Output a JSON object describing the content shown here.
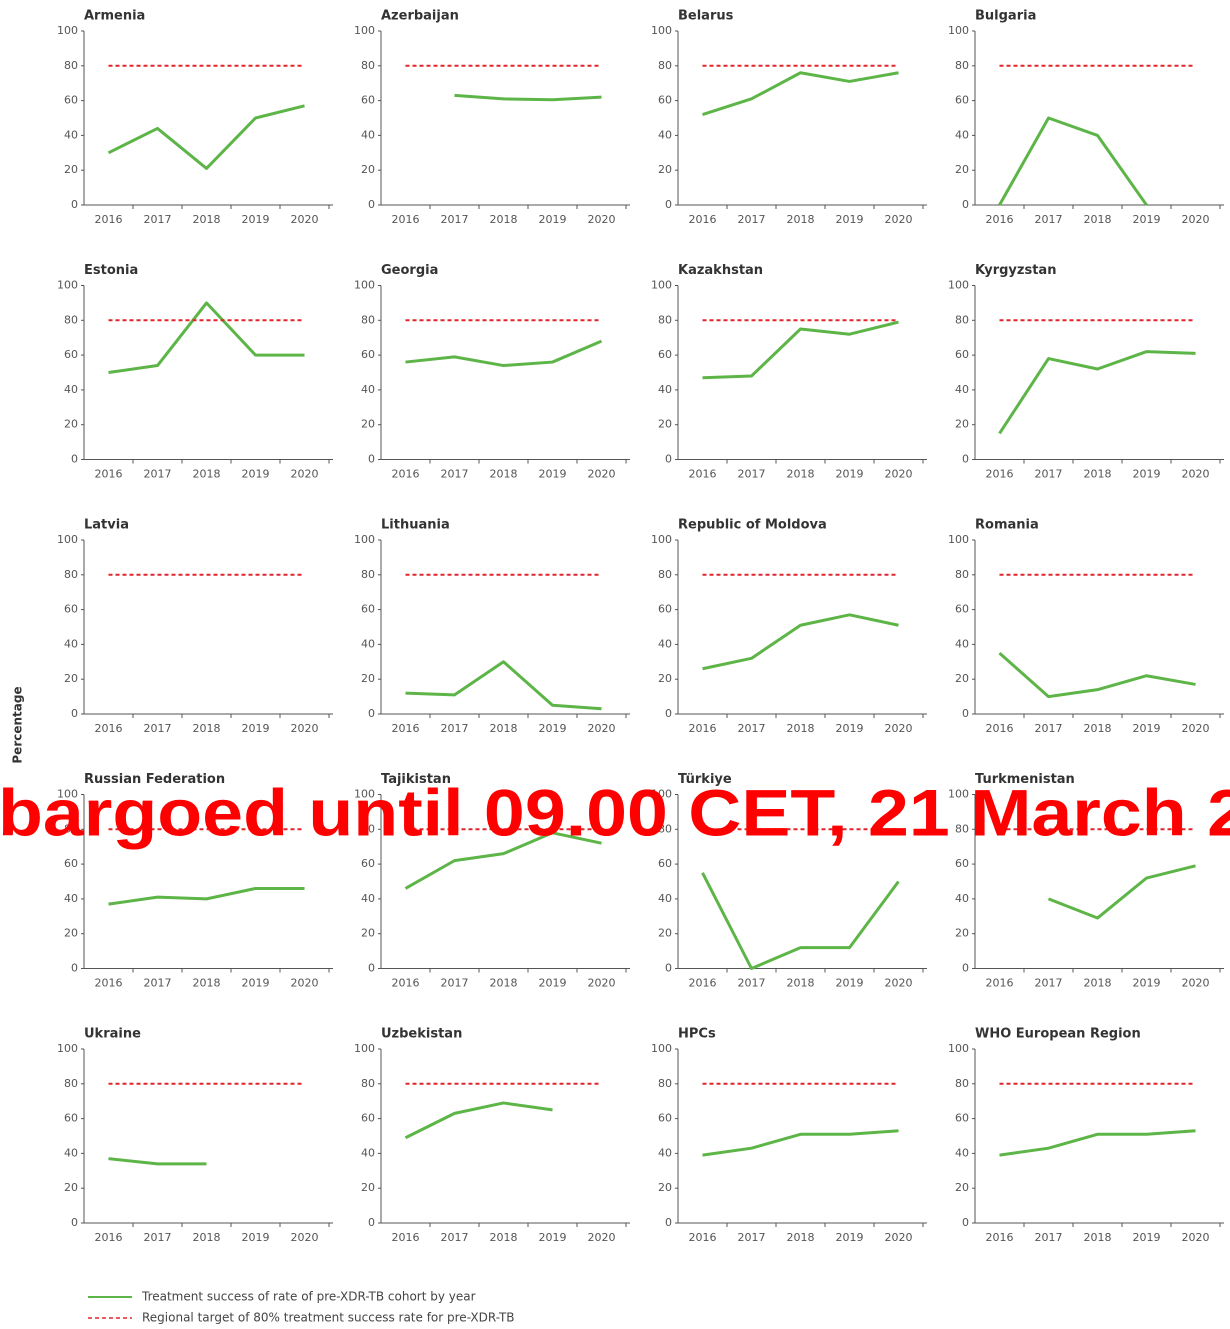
{
  "y_axis_label": "Percentage",
  "watermark": "bargoed until 09.00 CET, 21 March 2",
  "legend": [
    {
      "name": "Treatment success of rate of pre-XDR-TB cohort by year",
      "color": "#5db548",
      "dashed": false
    },
    {
      "name": "Regional target of 80% treatment success rate for pre-XDR-TB",
      "color": "#e3242b",
      "dashed": true
    }
  ],
  "chart_data": [
    {
      "type": "line",
      "title": "Armenia",
      "categories": [
        "2016",
        "2017",
        "2018",
        "2019",
        "2020"
      ],
      "ylim": [
        0,
        100
      ],
      "yticks": [
        0,
        20,
        40,
        60,
        80,
        100
      ],
      "series": [
        {
          "values": [
            30,
            44,
            21,
            50,
            57
          ]
        },
        {
          "values": [
            80,
            80,
            80,
            80,
            80
          ]
        }
      ]
    },
    {
      "type": "line",
      "title": "Azerbaijan",
      "categories": [
        "2016",
        "2017",
        "2018",
        "2019",
        "2020"
      ],
      "ylim": [
        0,
        100
      ],
      "yticks": [
        0,
        20,
        40,
        60,
        80,
        100
      ],
      "series": [
        {
          "values": [
            null,
            63,
            61,
            60.5,
            62
          ]
        },
        {
          "values": [
            80,
            80,
            80,
            80,
            80
          ]
        }
      ]
    },
    {
      "type": "line",
      "title": "Belarus",
      "categories": [
        "2016",
        "2017",
        "2018",
        "2019",
        "2020"
      ],
      "ylim": [
        0,
        100
      ],
      "yticks": [
        0,
        20,
        40,
        60,
        80,
        100
      ],
      "series": [
        {
          "values": [
            52,
            61,
            76,
            71,
            76
          ]
        },
        {
          "values": [
            80,
            80,
            80,
            80,
            80
          ]
        }
      ]
    },
    {
      "type": "line",
      "title": "Bulgaria",
      "categories": [
        "2016",
        "2017",
        "2018",
        "2019",
        "2020"
      ],
      "ylim": [
        0,
        100
      ],
      "yticks": [
        0,
        20,
        40,
        60,
        80,
        100
      ],
      "series": [
        {
          "values": [
            0,
            50,
            40,
            0,
            null
          ]
        },
        {
          "values": [
            80,
            80,
            80,
            80,
            80
          ]
        }
      ]
    },
    {
      "type": "line",
      "title": "Estonia",
      "categories": [
        "2016",
        "2017",
        "2018",
        "2019",
        "2020"
      ],
      "ylim": [
        0,
        100
      ],
      "yticks": [
        0,
        20,
        40,
        60,
        80,
        100
      ],
      "series": [
        {
          "values": [
            50,
            54,
            90,
            60,
            60
          ]
        },
        {
          "values": [
            80,
            80,
            80,
            80,
            80
          ]
        }
      ]
    },
    {
      "type": "line",
      "title": "Georgia",
      "categories": [
        "2016",
        "2017",
        "2018",
        "2019",
        "2020"
      ],
      "ylim": [
        0,
        100
      ],
      "yticks": [
        0,
        20,
        40,
        60,
        80,
        100
      ],
      "series": [
        {
          "values": [
            56,
            59,
            54,
            56,
            68
          ]
        },
        {
          "values": [
            80,
            80,
            80,
            80,
            80
          ]
        }
      ]
    },
    {
      "type": "line",
      "title": "Kazakhstan",
      "categories": [
        "2016",
        "2017",
        "2018",
        "2019",
        "2020"
      ],
      "ylim": [
        0,
        100
      ],
      "yticks": [
        0,
        20,
        40,
        60,
        80,
        100
      ],
      "series": [
        {
          "values": [
            47,
            48,
            75,
            72,
            79
          ]
        },
        {
          "values": [
            80,
            80,
            80,
            80,
            80
          ]
        }
      ]
    },
    {
      "type": "line",
      "title": "Kyrgyzstan",
      "categories": [
        "2016",
        "2017",
        "2018",
        "2019",
        "2020"
      ],
      "ylim": [
        0,
        100
      ],
      "yticks": [
        0,
        20,
        40,
        60,
        80,
        100
      ],
      "series": [
        {
          "values": [
            15,
            58,
            52,
            62,
            61
          ]
        },
        {
          "values": [
            80,
            80,
            80,
            80,
            80
          ]
        }
      ]
    },
    {
      "type": "line",
      "title": "Latvia",
      "categories": [
        "2016",
        "2017",
        "2018",
        "2019",
        "2020"
      ],
      "ylim": [
        0,
        100
      ],
      "yticks": [
        0,
        20,
        40,
        60,
        80,
        100
      ],
      "series": [
        {
          "values": [
            null,
            null,
            null,
            null,
            null
          ]
        },
        {
          "values": [
            80,
            80,
            80,
            80,
            80
          ]
        }
      ]
    },
    {
      "type": "line",
      "title": "Lithuania",
      "categories": [
        "2016",
        "2017",
        "2018",
        "2019",
        "2020"
      ],
      "ylim": [
        0,
        100
      ],
      "yticks": [
        0,
        20,
        40,
        60,
        80,
        100
      ],
      "series": [
        {
          "values": [
            12,
            11,
            30,
            5,
            3
          ]
        },
        {
          "values": [
            80,
            80,
            80,
            80,
            80
          ]
        }
      ]
    },
    {
      "type": "line",
      "title": "Republic of Moldova",
      "categories": [
        "2016",
        "2017",
        "2018",
        "2019",
        "2020"
      ],
      "ylim": [
        0,
        100
      ],
      "yticks": [
        0,
        20,
        40,
        60,
        80,
        100
      ],
      "series": [
        {
          "values": [
            26,
            32,
            51,
            57,
            51
          ]
        },
        {
          "values": [
            80,
            80,
            80,
            80,
            80
          ]
        }
      ]
    },
    {
      "type": "line",
      "title": "Romania",
      "categories": [
        "2016",
        "2017",
        "2018",
        "2019",
        "2020"
      ],
      "ylim": [
        0,
        100
      ],
      "yticks": [
        0,
        20,
        40,
        60,
        80,
        100
      ],
      "series": [
        {
          "values": [
            35,
            10,
            14,
            22,
            17
          ]
        },
        {
          "values": [
            80,
            80,
            80,
            80,
            80
          ]
        }
      ]
    },
    {
      "type": "line",
      "title": "Russian Federation",
      "categories": [
        "2016",
        "2017",
        "2018",
        "2019",
        "2020"
      ],
      "ylim": [
        0,
        100
      ],
      "yticks": [
        0,
        20,
        40,
        60,
        80,
        100
      ],
      "series": [
        {
          "values": [
            37,
            41,
            40,
            46,
            46
          ]
        },
        {
          "values": [
            80,
            80,
            80,
            80,
            80
          ]
        }
      ]
    },
    {
      "type": "line",
      "title": "Tajikistan",
      "categories": [
        "2016",
        "2017",
        "2018",
        "2019",
        "2020"
      ],
      "ylim": [
        0,
        100
      ],
      "yticks": [
        0,
        20,
        40,
        60,
        80,
        100
      ],
      "series": [
        {
          "values": [
            46,
            62,
            66,
            78,
            72
          ]
        },
        {
          "values": [
            80,
            80,
            80,
            80,
            80
          ]
        }
      ]
    },
    {
      "type": "line",
      "title": "Türkiye",
      "categories": [
        "2016",
        "2017",
        "2018",
        "2019",
        "2020"
      ],
      "ylim": [
        0,
        100
      ],
      "yticks": [
        0,
        20,
        40,
        60,
        80,
        100
      ],
      "series": [
        {
          "values": [
            55,
            0,
            12,
            12,
            50
          ]
        },
        {
          "values": [
            80,
            80,
            80,
            80,
            80
          ]
        }
      ]
    },
    {
      "type": "line",
      "title": "Turkmenistan",
      "categories": [
        "2016",
        "2017",
        "2018",
        "2019",
        "2020"
      ],
      "ylim": [
        0,
        100
      ],
      "yticks": [
        0,
        20,
        40,
        60,
        80,
        100
      ],
      "series": [
        {
          "values": [
            null,
            40,
            29,
            52,
            59
          ]
        },
        {
          "values": [
            80,
            80,
            80,
            80,
            80
          ]
        }
      ]
    },
    {
      "type": "line",
      "title": "Ukraine",
      "categories": [
        "2016",
        "2017",
        "2018",
        "2019",
        "2020"
      ],
      "ylim": [
        0,
        100
      ],
      "yticks": [
        0,
        20,
        40,
        60,
        80,
        100
      ],
      "series": [
        {
          "values": [
            37,
            34,
            34,
            null,
            null
          ]
        },
        {
          "values": [
            80,
            80,
            80,
            80,
            80
          ]
        }
      ]
    },
    {
      "type": "line",
      "title": "Uzbekistan",
      "categories": [
        "2016",
        "2017",
        "2018",
        "2019",
        "2020"
      ],
      "ylim": [
        0,
        100
      ],
      "yticks": [
        0,
        20,
        40,
        60,
        80,
        100
      ],
      "series": [
        {
          "values": [
            49,
            63,
            69,
            65,
            null
          ]
        },
        {
          "values": [
            80,
            80,
            80,
            80,
            80
          ]
        }
      ]
    },
    {
      "type": "line",
      "title": "HPCs",
      "categories": [
        "2016",
        "2017",
        "2018",
        "2019",
        "2020"
      ],
      "ylim": [
        0,
        100
      ],
      "yticks": [
        0,
        20,
        40,
        60,
        80,
        100
      ],
      "series": [
        {
          "values": [
            39,
            43,
            51,
            51,
            53
          ]
        },
        {
          "values": [
            80,
            80,
            80,
            80,
            80
          ]
        }
      ]
    },
    {
      "type": "line",
      "title": "WHO European Region",
      "categories": [
        "2016",
        "2017",
        "2018",
        "2019",
        "2020"
      ],
      "ylim": [
        0,
        100
      ],
      "yticks": [
        0,
        20,
        40,
        60,
        80,
        100
      ],
      "series": [
        {
          "values": [
            39,
            43,
            51,
            51,
            53
          ]
        },
        {
          "values": [
            80,
            80,
            80,
            80,
            80
          ]
        }
      ]
    }
  ]
}
